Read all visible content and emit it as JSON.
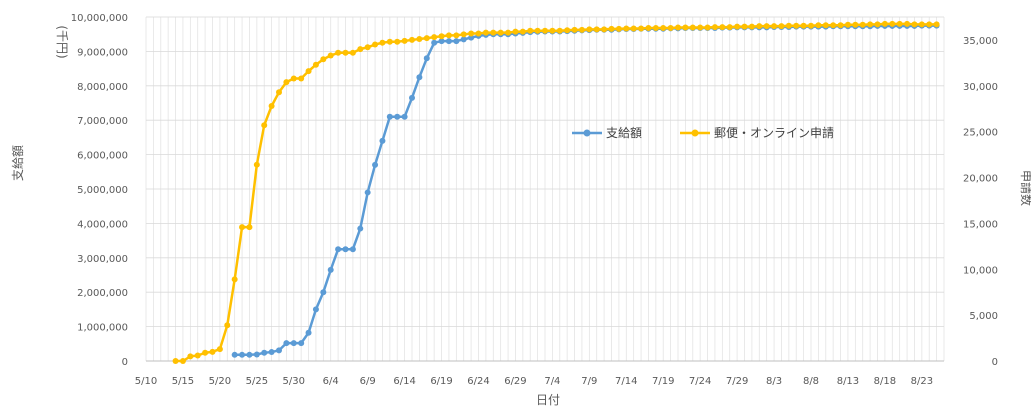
{
  "chart_data": {
    "type": "line",
    "xlabel": "日付",
    "ylabel_left": "支給額",
    "ylabel_left_unit": "(千円)",
    "ylabel_right": "申請数",
    "x_ticks": [
      "5/10",
      "5/15",
      "5/20",
      "5/25",
      "5/30",
      "6/4",
      "6/9",
      "6/14",
      "6/19",
      "6/24",
      "6/29",
      "7/4",
      "7/9",
      "7/14",
      "7/19",
      "7/24",
      "7/29",
      "8/3",
      "8/8",
      "8/13",
      "8/18",
      "8/23"
    ],
    "x_range": [
      "2020-05-10",
      "2020-08-26"
    ],
    "ylim_left": [
      0,
      10000000
    ],
    "ylim_right": [
      0,
      37500
    ],
    "y_ticks_left": [
      "0",
      "1,000,000",
      "2,000,000",
      "3,000,000",
      "4,000,000",
      "5,000,000",
      "6,000,000",
      "7,000,000",
      "8,000,000",
      "9,000,000",
      "10,000,000"
    ],
    "y_ticks_right": [
      "0",
      "5,000",
      "10,000",
      "15,000",
      "20,000",
      "25,000",
      "30,000",
      "35,000"
    ],
    "grid": true,
    "legend_position": "center-right",
    "series": [
      {
        "name": "支給額",
        "color": "#5b9bd5",
        "axis": "left",
        "points": [
          [
            "2020-05-22",
            180000
          ],
          [
            "2020-05-23",
            180000
          ],
          [
            "2020-05-24",
            180000
          ],
          [
            "2020-05-25",
            190000
          ],
          [
            "2020-05-26",
            240000
          ],
          [
            "2020-05-27",
            260000
          ],
          [
            "2020-05-28",
            310000
          ],
          [
            "2020-05-29",
            520000
          ],
          [
            "2020-05-30",
            520000
          ],
          [
            "2020-05-31",
            520000
          ],
          [
            "2020-06-01",
            820000
          ],
          [
            "2020-06-02",
            1500000
          ],
          [
            "2020-06-03",
            2000000
          ],
          [
            "2020-06-04",
            2650000
          ],
          [
            "2020-06-05",
            3250000
          ],
          [
            "2020-06-06",
            3250000
          ],
          [
            "2020-06-07",
            3250000
          ],
          [
            "2020-06-08",
            3850000
          ],
          [
            "2020-06-09",
            4900000
          ],
          [
            "2020-06-10",
            5700000
          ],
          [
            "2020-06-11",
            6400000
          ],
          [
            "2020-06-12",
            7100000
          ],
          [
            "2020-06-13",
            7100000
          ],
          [
            "2020-06-14",
            7100000
          ],
          [
            "2020-06-15",
            7650000
          ],
          [
            "2020-06-16",
            8250000
          ],
          [
            "2020-06-17",
            8800000
          ],
          [
            "2020-06-18",
            9250000
          ],
          [
            "2020-06-19",
            9300000
          ],
          [
            "2020-06-20",
            9300000
          ],
          [
            "2020-06-21",
            9300000
          ],
          [
            "2020-06-22",
            9350000
          ],
          [
            "2020-06-23",
            9400000
          ],
          [
            "2020-06-24",
            9450000
          ],
          [
            "2020-06-25",
            9480000
          ],
          [
            "2020-06-26",
            9500000
          ],
          [
            "2020-06-27",
            9500000
          ],
          [
            "2020-06-28",
            9500000
          ],
          [
            "2020-06-29",
            9520000
          ],
          [
            "2020-06-30",
            9540000
          ],
          [
            "2020-07-01",
            9560000
          ],
          [
            "2020-07-02",
            9570000
          ],
          [
            "2020-07-03",
            9580000
          ],
          [
            "2020-07-04",
            9580000
          ],
          [
            "2020-07-05",
            9580000
          ],
          [
            "2020-07-06",
            9590000
          ],
          [
            "2020-07-07",
            9600000
          ],
          [
            "2020-07-08",
            9610000
          ],
          [
            "2020-07-09",
            9620000
          ],
          [
            "2020-07-10",
            9630000
          ],
          [
            "2020-07-11",
            9630000
          ],
          [
            "2020-07-12",
            9630000
          ],
          [
            "2020-07-13",
            9640000
          ],
          [
            "2020-07-14",
            9650000
          ],
          [
            "2020-07-15",
            9650000
          ],
          [
            "2020-07-16",
            9660000
          ],
          [
            "2020-07-17",
            9660000
          ],
          [
            "2020-07-18",
            9660000
          ],
          [
            "2020-07-19",
            9660000
          ],
          [
            "2020-07-20",
            9670000
          ],
          [
            "2020-07-21",
            9670000
          ],
          [
            "2020-07-22",
            9680000
          ],
          [
            "2020-07-23",
            9680000
          ],
          [
            "2020-07-24",
            9680000
          ],
          [
            "2020-07-25",
            9680000
          ],
          [
            "2020-07-26",
            9680000
          ],
          [
            "2020-07-27",
            9690000
          ],
          [
            "2020-07-28",
            9690000
          ],
          [
            "2020-07-29",
            9700000
          ],
          [
            "2020-07-30",
            9700000
          ],
          [
            "2020-07-31",
            9700000
          ],
          [
            "2020-08-01",
            9700000
          ],
          [
            "2020-08-02",
            9700000
          ],
          [
            "2020-08-03",
            9710000
          ],
          [
            "2020-08-04",
            9710000
          ],
          [
            "2020-08-05",
            9710000
          ],
          [
            "2020-08-06",
            9720000
          ],
          [
            "2020-08-07",
            9720000
          ],
          [
            "2020-08-08",
            9720000
          ],
          [
            "2020-08-09",
            9720000
          ],
          [
            "2020-08-10",
            9720000
          ],
          [
            "2020-08-11",
            9730000
          ],
          [
            "2020-08-12",
            9730000
          ],
          [
            "2020-08-13",
            9730000
          ],
          [
            "2020-08-14",
            9730000
          ],
          [
            "2020-08-15",
            9730000
          ],
          [
            "2020-08-16",
            9730000
          ],
          [
            "2020-08-17",
            9740000
          ],
          [
            "2020-08-18",
            9740000
          ],
          [
            "2020-08-19",
            9740000
          ],
          [
            "2020-08-20",
            9740000
          ],
          [
            "2020-08-21",
            9740000
          ],
          [
            "2020-08-22",
            9740000
          ],
          [
            "2020-08-23",
            9750000
          ],
          [
            "2020-08-24",
            9750000
          ],
          [
            "2020-08-25",
            9750000
          ]
        ]
      },
      {
        "name": "郵便・オンライン申請",
        "color": "#ffc000",
        "axis": "right",
        "points": [
          [
            "2020-05-14",
            0
          ],
          [
            "2020-05-15",
            0
          ],
          [
            "2020-05-16",
            500
          ],
          [
            "2020-05-17",
            600
          ],
          [
            "2020-05-18",
            900
          ],
          [
            "2020-05-19",
            1000
          ],
          [
            "2020-05-20",
            1300
          ],
          [
            "2020-05-21",
            3900
          ],
          [
            "2020-05-22",
            8900
          ],
          [
            "2020-05-23",
            14600
          ],
          [
            "2020-05-24",
            14600
          ],
          [
            "2020-05-25",
            21400
          ],
          [
            "2020-05-26",
            25700
          ],
          [
            "2020-05-27",
            27800
          ],
          [
            "2020-05-28",
            29300
          ],
          [
            "2020-05-29",
            30400
          ],
          [
            "2020-05-30",
            30800
          ],
          [
            "2020-05-31",
            30800
          ],
          [
            "2020-06-01",
            31600
          ],
          [
            "2020-06-02",
            32300
          ],
          [
            "2020-06-03",
            32900
          ],
          [
            "2020-06-04",
            33300
          ],
          [
            "2020-06-05",
            33600
          ],
          [
            "2020-06-06",
            33600
          ],
          [
            "2020-06-07",
            33600
          ],
          [
            "2020-06-08",
            34000
          ],
          [
            "2020-06-09",
            34200
          ],
          [
            "2020-06-10",
            34500
          ],
          [
            "2020-06-11",
            34700
          ],
          [
            "2020-06-12",
            34800
          ],
          [
            "2020-06-13",
            34800
          ],
          [
            "2020-06-14",
            34900
          ],
          [
            "2020-06-15",
            35000
          ],
          [
            "2020-06-16",
            35100
          ],
          [
            "2020-06-17",
            35200
          ],
          [
            "2020-06-18",
            35300
          ],
          [
            "2020-06-19",
            35400
          ],
          [
            "2020-06-20",
            35500
          ],
          [
            "2020-06-21",
            35500
          ],
          [
            "2020-06-22",
            35600
          ],
          [
            "2020-06-23",
            35700
          ],
          [
            "2020-06-24",
            35700
          ],
          [
            "2020-06-25",
            35800
          ],
          [
            "2020-06-26",
            35800
          ],
          [
            "2020-06-27",
            35800
          ],
          [
            "2020-06-28",
            35800
          ],
          [
            "2020-06-29",
            35900
          ],
          [
            "2020-06-30",
            35900
          ],
          [
            "2020-07-01",
            36000
          ],
          [
            "2020-07-02",
            36000
          ],
          [
            "2020-07-03",
            36000
          ],
          [
            "2020-07-04",
            36000
          ],
          [
            "2020-07-05",
            36000
          ],
          [
            "2020-07-06",
            36050
          ],
          [
            "2020-07-07",
            36100
          ],
          [
            "2020-07-08",
            36100
          ],
          [
            "2020-07-09",
            36150
          ],
          [
            "2020-07-10",
            36150
          ],
          [
            "2020-07-11",
            36150
          ],
          [
            "2020-07-12",
            36200
          ],
          [
            "2020-07-13",
            36200
          ],
          [
            "2020-07-14",
            36250
          ],
          [
            "2020-07-15",
            36250
          ],
          [
            "2020-07-16",
            36250
          ],
          [
            "2020-07-17",
            36300
          ],
          [
            "2020-07-18",
            36300
          ],
          [
            "2020-07-19",
            36300
          ],
          [
            "2020-07-20",
            36300
          ],
          [
            "2020-07-21",
            36350
          ],
          [
            "2020-07-22",
            36350
          ],
          [
            "2020-07-23",
            36350
          ],
          [
            "2020-07-24",
            36350
          ],
          [
            "2020-07-25",
            36350
          ],
          [
            "2020-07-26",
            36400
          ],
          [
            "2020-07-27",
            36400
          ],
          [
            "2020-07-28",
            36400
          ],
          [
            "2020-07-29",
            36450
          ],
          [
            "2020-07-30",
            36450
          ],
          [
            "2020-07-31",
            36450
          ],
          [
            "2020-08-01",
            36500
          ],
          [
            "2020-08-02",
            36500
          ],
          [
            "2020-08-03",
            36500
          ],
          [
            "2020-08-04",
            36500
          ],
          [
            "2020-08-05",
            36550
          ],
          [
            "2020-08-06",
            36550
          ],
          [
            "2020-08-07",
            36550
          ],
          [
            "2020-08-08",
            36550
          ],
          [
            "2020-08-09",
            36600
          ],
          [
            "2020-08-10",
            36600
          ],
          [
            "2020-08-11",
            36600
          ],
          [
            "2020-08-12",
            36600
          ],
          [
            "2020-08-13",
            36650
          ],
          [
            "2020-08-14",
            36650
          ],
          [
            "2020-08-15",
            36650
          ],
          [
            "2020-08-16",
            36700
          ],
          [
            "2020-08-17",
            36700
          ],
          [
            "2020-08-18",
            36750
          ],
          [
            "2020-08-19",
            36750
          ],
          [
            "2020-08-20",
            36750
          ],
          [
            "2020-08-21",
            36750
          ],
          [
            "2020-08-22",
            36700
          ],
          [
            "2020-08-23",
            36700
          ],
          [
            "2020-08-24",
            36700
          ],
          [
            "2020-08-25",
            36700
          ]
        ]
      }
    ]
  }
}
